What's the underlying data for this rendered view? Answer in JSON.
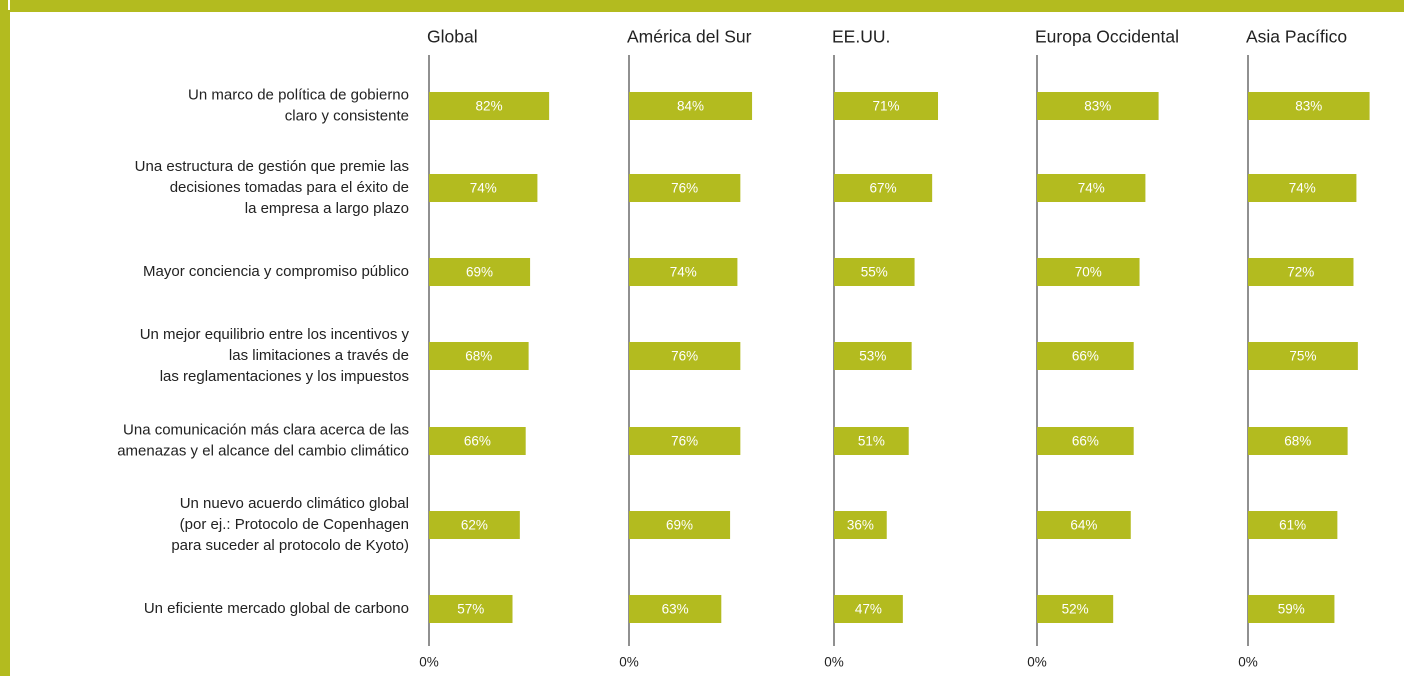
{
  "chart_data": {
    "type": "bar",
    "categories": [
      [
        "Un marco de política de gobierno",
        "claro y consistente"
      ],
      [
        "Una estructura de gestión que premie las",
        "decisiones tomadas para el éxito de",
        "la empresa a largo plazo"
      ],
      [
        "Mayor conciencia y compromiso público"
      ],
      [
        "Un mejor equilibrio entre los incentivos y",
        "las limitaciones a través de",
        "las reglamentaciones y los impuestos"
      ],
      [
        "Una comunicación más clara acerca de las",
        "amenazas y el alcance del cambio climático"
      ],
      [
        "Un nuevo acuerdo climático global",
        "(por ej.: Protocolo de Copenhagen",
        "para suceder al protocolo de Kyoto)"
      ],
      [
        "Un eficiente mercado global de carbono"
      ]
    ],
    "series": [
      {
        "name": "Global",
        "color": "#b3bb1f",
        "values": [
          82,
          74,
          69,
          68,
          66,
          62,
          57
        ],
        "value_labels": [
          "82%",
          "74%",
          "69%",
          "68%",
          "66%",
          "62%",
          "57%"
        ]
      },
      {
        "name": "América del Sur",
        "color": "#b3bb1f",
        "values": [
          84,
          76,
          74,
          76,
          76,
          69,
          63
        ],
        "value_labels": [
          "84%",
          "76%",
          "74%",
          "76%",
          "76%",
          "69%",
          "63%"
        ]
      },
      {
        "name": "EE.UU.",
        "color": "#b3bb1f",
        "values": [
          71,
          67,
          55,
          53,
          51,
          36,
          47
        ],
        "value_labels": [
          "71%",
          "67%",
          "55%",
          "53%",
          "51%",
          "36%",
          "47%"
        ]
      },
      {
        "name": "Europa Occidental",
        "color": "#b3bb1f",
        "values": [
          83,
          74,
          70,
          66,
          66,
          64,
          52
        ],
        "value_labels": [
          "83%",
          "74%",
          "70%",
          "66%",
          "66%",
          "64%",
          "52%"
        ]
      },
      {
        "name": "Asia Pacífico",
        "color": "#b3bb1f",
        "values": [
          83,
          74,
          72,
          75,
          68,
          61,
          59
        ],
        "value_labels": [
          "83%",
          "74%",
          "72%",
          "75%",
          "68%",
          "61%",
          "59%"
        ]
      }
    ],
    "xlim": [
      0,
      100
    ],
    "xticks": [
      {
        "value": 0,
        "label": "0%"
      }
    ]
  }
}
